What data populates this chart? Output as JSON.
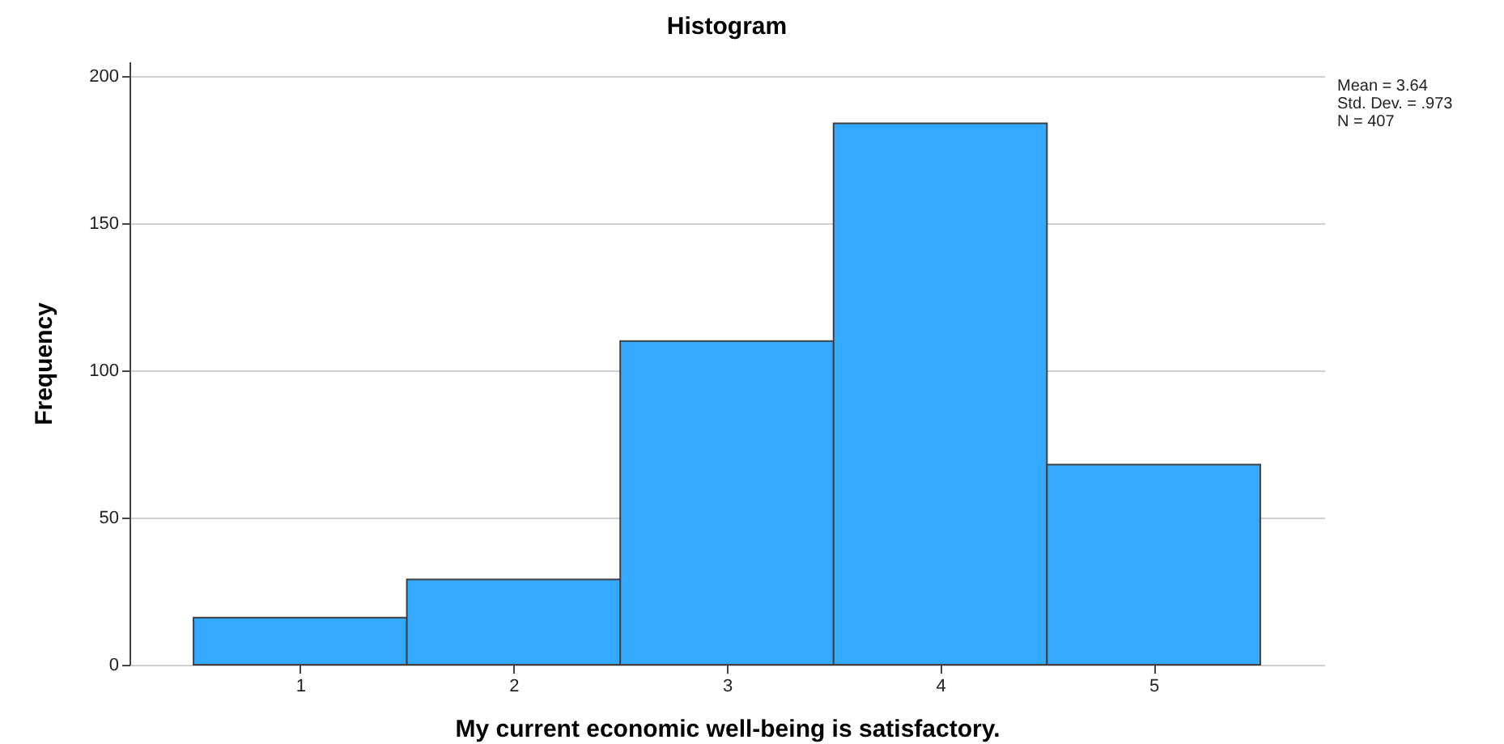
{
  "chart_data": {
    "type": "histogram",
    "title": "Histogram",
    "xlabel": "My current economic well-being is satisfactory.",
    "ylabel": "Frequency",
    "bins": [
      0.5,
      1.5,
      2.5,
      3.5,
      4.5,
      5.5
    ],
    "values": [
      16,
      29,
      110,
      184,
      68
    ],
    "color": "#33aaff",
    "xlim": [
      0.2,
      5.8
    ],
    "ylim": [
      0,
      205
    ],
    "xticks": [
      1,
      2,
      3,
      4,
      5
    ],
    "yticks": [
      0,
      50,
      100,
      150,
      200
    ],
    "grid": "y",
    "annotations": [
      "Mean = 3.64",
      "Std. Dev. = .973",
      "N = 407"
    ]
  }
}
